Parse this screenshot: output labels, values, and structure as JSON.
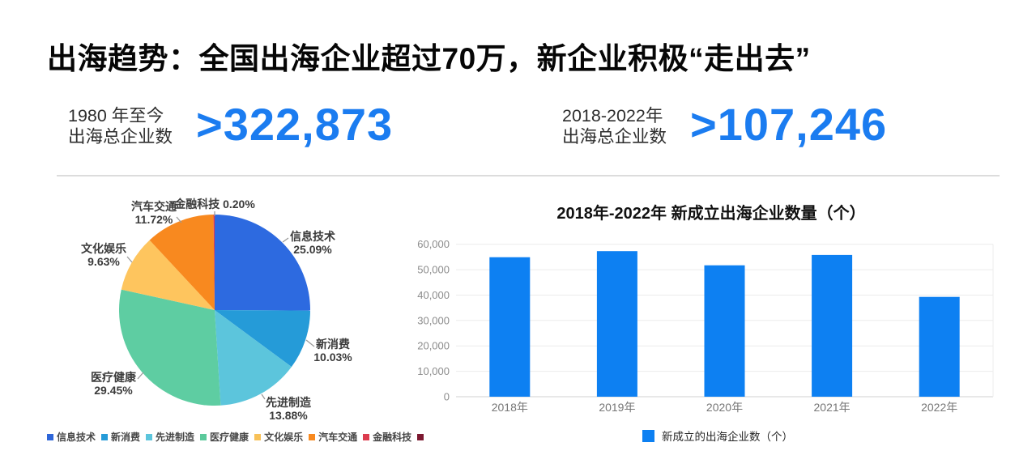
{
  "page": {
    "title": "出海趋势：全国出海企业超过70万，新企业积极“走出去”"
  },
  "stats": [
    {
      "label_line1": "1980 年至今",
      "label_line2": "出海总企业数",
      "value": ">322,873"
    },
    {
      "label_line1": "2018-2022年",
      "label_line2": "出海总企业数",
      "value": ">107,246"
    }
  ],
  "colors": {
    "accent_blue": "#1b7cf0",
    "bar_blue": "#0d80f2",
    "divider": "#dcdcdc"
  },
  "chart_data": [
    {
      "type": "pie",
      "categories": [
        "信息技术",
        "新消费",
        "先进制造",
        "医疗健康",
        "文化娱乐",
        "汽车交通",
        "金融科技"
      ],
      "values": [
        25.09,
        10.03,
        13.88,
        29.45,
        9.63,
        11.72,
        0.2
      ],
      "unit": "%",
      "start_angle": "top",
      "direction": "clockwise",
      "colors": [
        "#2d6ae0",
        "#259bd8",
        "#5cc5dc",
        "#5ecda2",
        "#fec55e",
        "#f8891f",
        "#e03a4e"
      ],
      "slice_labels": [
        [
          "信息技术",
          "25.09%"
        ],
        [
          "新消费",
          "10.03%"
        ],
        [
          "先进制造",
          "13.88%"
        ],
        [
          "医疗健康",
          "29.45%"
        ],
        [
          "文化娱乐",
          "9.63%"
        ],
        [
          "汽车交通",
          "11.72%"
        ],
        [
          "金融科技 0.20%"
        ]
      ],
      "legend_position": "bottom-left",
      "legend": [
        {
          "label": "信息技术",
          "color": "#2e66d9"
        },
        {
          "label": "新消费",
          "color": "#259bd8"
        },
        {
          "label": "先进制造",
          "color": "#5cc5dc"
        },
        {
          "label": "医疗健康",
          "color": "#5bc99b"
        },
        {
          "label": "文化娱乐",
          "color": "#f8c158"
        },
        {
          "label": "汽车交通",
          "color": "#f8891f"
        },
        {
          "label": "金融科技",
          "color": "#dc3c4e"
        },
        {
          "label": "",
          "color": "#7c1830"
        }
      ]
    },
    {
      "type": "bar",
      "title": "2018年-2022年 新成立出海企业数量（个）",
      "categories": [
        "2018年",
        "2019年",
        "2020年",
        "2021年",
        "2022年"
      ],
      "values": [
        54900,
        57300,
        51700,
        55800,
        39300
      ],
      "ylim": [
        0,
        60000
      ],
      "yticks": [
        {
          "value": 0,
          "label": "0"
        },
        {
          "value": 10000,
          "label": "10,000"
        },
        {
          "value": 20000,
          "label": "20,000"
        },
        {
          "value": 30000,
          "label": "30,000"
        },
        {
          "value": 40000,
          "label": "40,000"
        },
        {
          "value": 50000,
          "label": "50,000"
        },
        {
          "value": 60000,
          "label": "60,000"
        }
      ],
      "grid": "horizontal",
      "bar_color": "#0d80f2",
      "legend_position": "bottom-center",
      "legend": [
        {
          "label": "新成立的出海企业数（个）",
          "color": "#0d80f2"
        }
      ]
    }
  ]
}
